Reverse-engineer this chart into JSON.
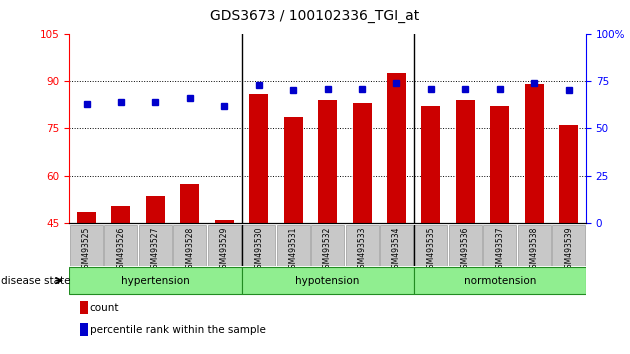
{
  "title": "GDS3673 / 100102336_TGI_at",
  "samples": [
    "GSM493525",
    "GSM493526",
    "GSM493527",
    "GSM493528",
    "GSM493529",
    "GSM493530",
    "GSM493531",
    "GSM493532",
    "GSM493533",
    "GSM493534",
    "GSM493535",
    "GSM493536",
    "GSM493537",
    "GSM493538",
    "GSM493539"
  ],
  "count_values": [
    48.5,
    50.5,
    53.5,
    57.5,
    46.0,
    86.0,
    78.5,
    84.0,
    83.0,
    92.5,
    82.0,
    84.0,
    82.0,
    89.0,
    76.0
  ],
  "percentile_values": [
    63,
    64,
    64,
    66,
    62,
    73,
    70,
    71,
    71,
    74,
    71,
    71,
    71,
    74,
    70
  ],
  "groups": [
    {
      "label": "hypertension",
      "start": 0,
      "end": 5
    },
    {
      "label": "hypotension",
      "start": 5,
      "end": 10
    },
    {
      "label": "normotension",
      "start": 10,
      "end": 15
    }
  ],
  "bar_color": "#cc0000",
  "dot_color": "#0000cc",
  "left_ylim": [
    45,
    105
  ],
  "left_yticks": [
    45,
    60,
    75,
    90,
    105
  ],
  "right_ylim": [
    0,
    100
  ],
  "right_yticks": [
    0,
    25,
    50,
    75,
    100
  ],
  "grid_values": [
    60,
    75,
    90
  ],
  "tick_bg": "#c8c8c8",
  "legend_count_label": "count",
  "legend_pct_label": "percentile rank within the sample",
  "disease_state_label": "disease state",
  "group_fill": "#90EE90",
  "group_edge": "#228B22"
}
